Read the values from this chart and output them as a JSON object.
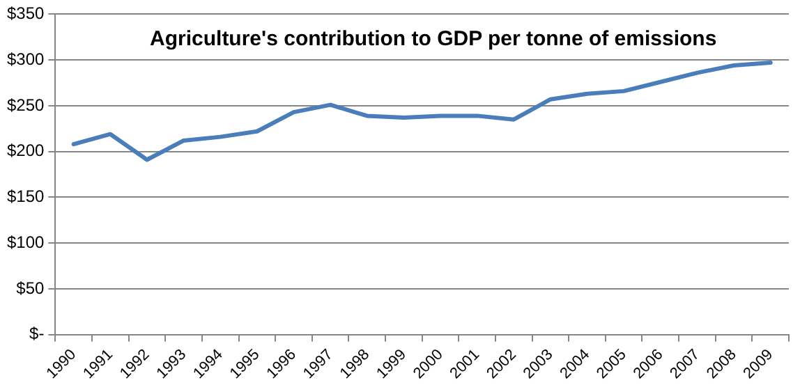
{
  "chart_data": {
    "type": "line",
    "title": "Agriculture's contribution to GDP per tonne of emissions",
    "categories": [
      "1990",
      "1991",
      "1992",
      "1993",
      "1994",
      "1995",
      "1996",
      "1997",
      "1998",
      "1999",
      "2000",
      "2001",
      "2002",
      "2003",
      "2004",
      "2005",
      "2006",
      "2007",
      "2008",
      "2009"
    ],
    "series": [
      {
        "color": "#4a7ebb",
        "values": [
          208,
          219,
          191,
          212,
          216,
          222,
          243,
          251,
          239,
          237,
          239,
          239,
          235,
          257,
          263,
          266,
          276,
          286,
          294,
          297
        ]
      }
    ],
    "ylim": [
      0,
      350
    ],
    "yticks": [
      {
        "value": 0,
        "label": "$-"
      },
      {
        "value": 50,
        "label": "$50"
      },
      {
        "value": 100,
        "label": "$100"
      },
      {
        "value": 150,
        "label": "$150"
      },
      {
        "value": 200,
        "label": "$200"
      },
      {
        "value": 250,
        "label": "$250"
      },
      {
        "value": 300,
        "label": "$300"
      },
      {
        "value": 350,
        "label": "$350"
      }
    ],
    "grid": "y",
    "legend": false,
    "marker": "none",
    "line_style": "solid"
  }
}
